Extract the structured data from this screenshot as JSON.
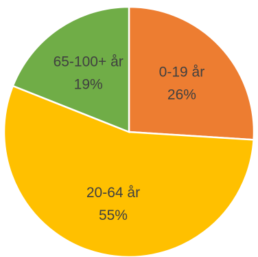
{
  "chart_data": {
    "type": "pie",
    "title": "",
    "slices": [
      {
        "label": "0-19 år",
        "value": 26,
        "percent_label": "26%",
        "color": "#ED7D31"
      },
      {
        "label": "20-64 år",
        "value": 55,
        "percent_label": "55%",
        "color": "#FFC000"
      },
      {
        "label": "65-100+ år",
        "value": 19,
        "percent_label": "19%",
        "color": "#70AD47"
      }
    ],
    "legend": "none",
    "start_angle_deg": 0,
    "direction": "clockwise"
  }
}
